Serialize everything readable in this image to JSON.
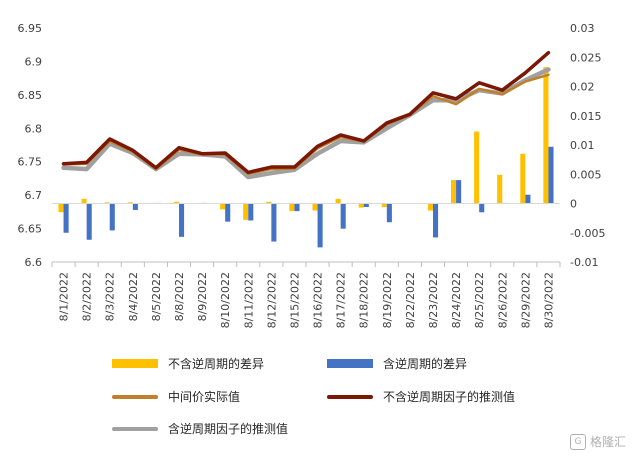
{
  "chart_data": {
    "type": "bar+line",
    "categories": [
      "8/1/2022",
      "8/2/2022",
      "8/3/2022",
      "8/4/2022",
      "8/5/2022",
      "8/8/2022",
      "8/9/2022",
      "8/10/2022",
      "8/11/2022",
      "8/12/2022",
      "8/15/2022",
      "8/16/2022",
      "8/17/2022",
      "8/18/2022",
      "8/19/2022",
      "8/22/2022",
      "8/23/2022",
      "8/24/2022",
      "8/25/2022",
      "8/26/2022",
      "8/29/2022",
      "8/30/2022"
    ],
    "left_axis": {
      "min": 6.6,
      "max": 6.95,
      "step": 0.05,
      "ticks": [
        "6.6",
        "6.65",
        "6.7",
        "6.75",
        "6.8",
        "6.85",
        "6.9",
        "6.95"
      ]
    },
    "right_axis": {
      "min": -0.01,
      "max": 0.03,
      "step": 0.005,
      "ticks": [
        "-0.01",
        "-0.005",
        "0",
        "0.005",
        "0.01",
        "0.015",
        "0.02",
        "0.025",
        "0.03"
      ]
    },
    "bar_series": [
      {
        "name": "不含逆周期的差异",
        "color": "#FFC000",
        "axis": "right",
        "values": [
          -0.0015,
          0.0008,
          0.0002,
          0.0002,
          0.0001,
          0.0003,
          0.0001,
          -0.001,
          -0.0028,
          0.0003,
          -0.0013,
          -0.0012,
          0.0008,
          -0.0007,
          -0.0006,
          0.0,
          -0.0012,
          0.004,
          0.0123,
          0.0049,
          0.0085,
          0.0233
        ]
      },
      {
        "name": "含逆周期的差异",
        "color": "#4472C4",
        "axis": "right",
        "values": [
          -0.005,
          -0.0062,
          -0.0046,
          -0.0011,
          0.0001,
          -0.0057,
          0.0001,
          -0.0031,
          -0.0029,
          -0.0065,
          -0.0013,
          -0.0075,
          -0.0043,
          -0.0006,
          -0.0032,
          0.0,
          -0.0058,
          0.004,
          -0.0015,
          0.0001,
          0.0015,
          0.0097
        ]
      }
    ],
    "line_series": [
      {
        "name": "中间价实际值",
        "color": "#C07F2A",
        "width": 2.5,
        "axis": "left",
        "values": [
          6.746,
          6.747,
          6.781,
          6.765,
          6.739,
          6.768,
          6.761,
          6.761,
          6.732,
          6.739,
          6.74,
          6.77,
          6.787,
          6.78,
          6.806,
          6.82,
          6.848,
          6.836,
          6.859,
          6.851,
          6.87,
          6.88
        ]
      },
      {
        "name": "不含逆周期因子的推测值",
        "color": "#7A1705",
        "width": 3.5,
        "axis": "left",
        "values": [
          6.747,
          6.749,
          6.784,
          6.767,
          6.741,
          6.771,
          6.762,
          6.763,
          6.734,
          6.742,
          6.742,
          6.773,
          6.79,
          6.781,
          6.808,
          6.821,
          6.853,
          6.844,
          6.868,
          6.857,
          6.883,
          6.913
        ]
      },
      {
        "name": "含逆周期因子的推测值",
        "color": "#A0A0A0",
        "width": 4.5,
        "axis": "left",
        "values": [
          6.741,
          6.739,
          6.777,
          6.763,
          6.739,
          6.762,
          6.761,
          6.758,
          6.727,
          6.733,
          6.738,
          6.762,
          6.781,
          6.779,
          6.8,
          6.82,
          6.842,
          6.842,
          6.857,
          6.852,
          6.872,
          6.888
        ]
      }
    ],
    "grid": false,
    "legend_position": "bottom"
  },
  "legend": {
    "items": [
      {
        "label": "不含逆周期的差异",
        "color": "#FFC000",
        "kind": "bar"
      },
      {
        "label": "含逆周期的差异",
        "color": "#4472C4",
        "kind": "bar"
      },
      {
        "label": "中间价实际值",
        "color": "#C07F2A",
        "kind": "line"
      },
      {
        "label": "不含逆周期因子的推测值",
        "color": "#7A1705",
        "kind": "line"
      },
      {
        "label": "含逆周期因子的推测值",
        "color": "#A0A0A0",
        "kind": "line"
      }
    ]
  },
  "watermark": {
    "label": "格隆汇",
    "icon": "gelonghui-logo-icon"
  }
}
